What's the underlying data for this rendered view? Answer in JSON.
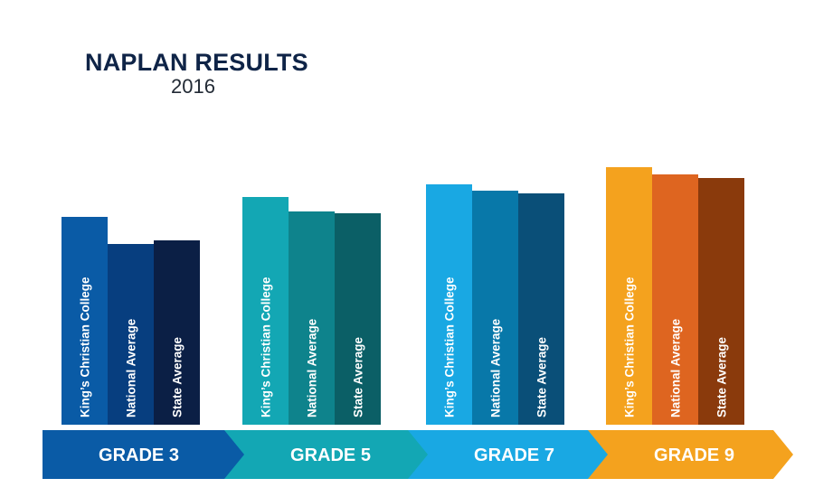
{
  "header": {
    "title": "NAPLAN RESULTS",
    "subtitle": "2016"
  },
  "chart_data": {
    "type": "bar",
    "series_labels": [
      "King’s Christian College",
      "National Average",
      "State Average"
    ],
    "categories": [
      "GRADE 3",
      "GRADE 5",
      "GRADE 7",
      "GRADE 9"
    ],
    "series": [
      {
        "name": "King’s Christian College",
        "values": [
          230,
          252,
          266,
          285
        ]
      },
      {
        "name": "National Average",
        "values": [
          200,
          236,
          259,
          277
        ]
      },
      {
        "name": "State Average",
        "values": [
          204,
          234,
          256,
          273
        ]
      }
    ],
    "colors": [
      [
        "#0a5ba6",
        "#073e7f",
        "#0b1f45"
      ],
      [
        "#13a7b4",
        "#0e838c",
        "#0b5f66"
      ],
      [
        "#19a8e3",
        "#0878a9",
        "#0a4f78"
      ],
      [
        "#f4a21e",
        "#de6520",
        "#8a3a0c"
      ]
    ],
    "arrow_colors": [
      "#0a5ba6",
      "#13a7b4",
      "#19a8e3",
      "#f4a21e"
    ],
    "ylim": [
      0,
      300
    ]
  }
}
